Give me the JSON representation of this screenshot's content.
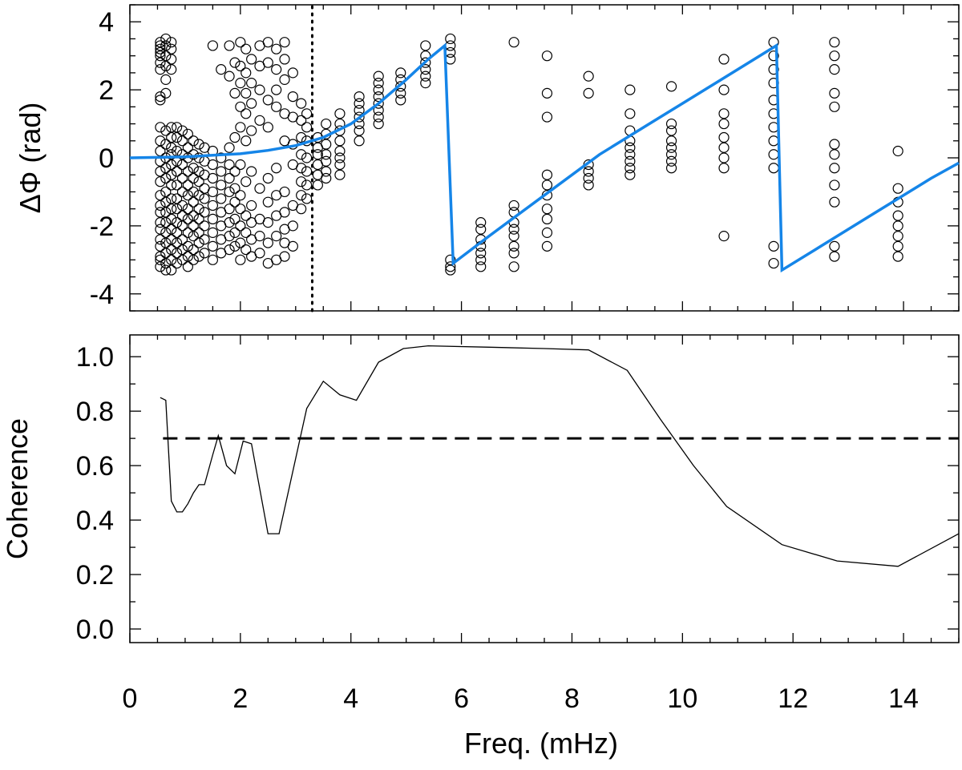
{
  "chart_data": [
    {
      "panel": "top",
      "type": "scatter",
      "xlabel": "Freq. (mHz)",
      "ylabel": "ΔΦ (rad)",
      "xlim": [
        0,
        15
      ],
      "ylim": [
        -4.5,
        4.5
      ],
      "yticks": [
        -4,
        -2,
        0,
        2,
        4
      ],
      "xticks": [
        0,
        2,
        4,
        6,
        8,
        10,
        12,
        14
      ],
      "grid": false,
      "marker": "open-circle",
      "marker_color": "#000000",
      "vline_x": 3.3,
      "vline_style": "dotted",
      "points": [
        {
          "x": 0.55,
          "y": [
            3.4,
            3.3,
            3.2,
            3.1,
            3.0,
            2.8,
            2.6,
            1.8,
            1.7,
            0.9,
            0.5,
            0.2,
            -0.1,
            -0.4,
            -0.7,
            -1.1,
            -1.4,
            -1.6,
            -1.9,
            -2.1,
            -2.4,
            -2.6,
            -2.9,
            -3.0,
            -3.2
          ]
        },
        {
          "x": 0.65,
          "y": [
            3.5,
            3.3,
            3.0,
            2.7,
            2.3,
            1.9,
            0.8,
            0.4,
            0.0,
            -0.3,
            -0.6,
            -1.0,
            -1.3,
            -1.6,
            -1.9,
            -2.2,
            -2.5,
            -2.8,
            -3.1,
            -3.3
          ]
        },
        {
          "x": 0.75,
          "y": [
            3.4,
            3.2,
            2.9,
            2.6,
            0.9,
            0.6,
            0.3,
            0.1,
            -0.2,
            -0.5,
            -0.8,
            -1.2,
            -1.5,
            -1.8,
            -2.1,
            -2.4,
            -2.7,
            -3.0,
            -3.3
          ]
        },
        {
          "x": 0.85,
          "y": [
            0.9,
            0.6,
            0.2,
            -0.1,
            -0.4,
            -0.8,
            -1.2,
            -1.5,
            -1.9,
            -2.2,
            -2.5,
            -2.8,
            -3.1
          ]
        },
        {
          "x": 0.95,
          "y": [
            0.8,
            0.5,
            0.1,
            -0.2,
            -0.6,
            -1.0,
            -1.4,
            -1.7,
            -2.0,
            -2.4,
            -2.7,
            -3.0
          ]
        },
        {
          "x": 1.05,
          "y": [
            0.7,
            0.3,
            0.0,
            -0.4,
            -0.8,
            -1.1,
            -1.5,
            -1.8,
            -2.2,
            -2.6,
            -2.9,
            -3.2
          ]
        },
        {
          "x": 1.15,
          "y": [
            0.5,
            0.1,
            -0.3,
            -0.6,
            -1.0,
            -1.3,
            -1.7,
            -2.0,
            -2.3,
            -2.7,
            -3.0
          ]
        },
        {
          "x": 1.25,
          "y": [
            0.4,
            0.0,
            -0.4,
            -0.7,
            -1.1,
            -1.5,
            -1.8,
            -2.2,
            -2.5,
            -2.9
          ]
        },
        {
          "x": 1.35,
          "y": [
            0.3,
            -0.1,
            -0.5,
            -0.9,
            -1.2,
            -1.6,
            -2.0,
            -2.4,
            -2.8
          ]
        },
        {
          "x": 1.5,
          "y": [
            3.3,
            0.2,
            -0.2,
            -0.6,
            -1.0,
            -1.4,
            -1.8,
            -2.2,
            -2.6,
            -3.0
          ]
        },
        {
          "x": 1.65,
          "y": [
            2.6,
            0.0,
            -0.4,
            -0.8,
            -1.2,
            -1.6,
            -2.0,
            -2.4,
            -2.8
          ]
        },
        {
          "x": 1.8,
          "y": [
            3.3,
            2.4,
            0.3,
            -0.2,
            -0.6,
            -1.0,
            -1.5,
            -1.9,
            -2.3,
            -2.7
          ]
        },
        {
          "x": 1.9,
          "y": [
            2.8,
            1.9,
            0.6,
            -0.4,
            -0.9,
            -1.3,
            -1.8,
            -2.2,
            -2.6
          ]
        },
        {
          "x": 2.0,
          "y": [
            3.4,
            2.7,
            2.2,
            1.5,
            0.9,
            -0.2,
            -1.1,
            -1.5,
            -2.0,
            -2.5,
            -3.0
          ]
        },
        {
          "x": 2.1,
          "y": [
            3.2,
            2.5,
            1.9,
            1.3,
            0.5,
            -0.7,
            -1.7,
            -2.2,
            -2.7
          ]
        },
        {
          "x": 2.2,
          "y": [
            2.9,
            2.2,
            1.6,
            0.8,
            -0.4,
            -1.4,
            -1.9,
            -2.4,
            -2.9
          ]
        },
        {
          "x": 2.35,
          "y": [
            3.3,
            2.7,
            2.0,
            1.1,
            -0.9,
            -1.8,
            -2.3,
            -2.8
          ]
        },
        {
          "x": 2.5,
          "y": [
            3.4,
            2.8,
            1.7,
            0.9,
            -0.6,
            -1.3,
            -1.9,
            -2.5,
            -3.1
          ]
        },
        {
          "x": 2.65,
          "y": [
            3.2,
            2.6,
            2.0,
            1.5,
            -0.3,
            -1.1,
            -1.7,
            -2.3,
            -3.0
          ]
        },
        {
          "x": 2.8,
          "y": [
            3.4,
            2.9,
            2.3,
            1.3,
            0.5,
            -1.0,
            -1.6,
            -2.1,
            -2.5,
            -2.9
          ]
        },
        {
          "x": 2.95,
          "y": [
            2.5,
            1.8,
            1.2,
            0.4,
            -0.2,
            -1.4,
            -2.0,
            -2.6
          ]
        },
        {
          "x": 3.1,
          "y": [
            1.6,
            1.1,
            0.6,
            0.1,
            -0.3,
            -0.7,
            -1.1,
            -1.5
          ]
        },
        {
          "x": 3.2,
          "y": [
            1.3,
            0.9,
            0.5,
            0.0,
            -0.4,
            -0.8,
            -1.2
          ]
        },
        {
          "x": 3.4,
          "y": [
            0.6,
            0.3,
            0.1,
            -0.2,
            -0.5,
            -0.8
          ]
        },
        {
          "x": 3.55,
          "y": [
            1.0,
            0.7,
            0.4,
            0.1,
            -0.1,
            -0.4,
            -0.6
          ]
        },
        {
          "x": 3.8,
          "y": [
            1.3,
            1.0,
            0.8,
            0.5,
            0.2,
            0.0,
            -0.2,
            -0.5
          ]
        },
        {
          "x": 4.15,
          "y": [
            1.8,
            1.6,
            1.4,
            1.2,
            1.0,
            0.8,
            0.5
          ]
        },
        {
          "x": 4.5,
          "y": [
            2.4,
            2.2,
            2.0,
            1.8,
            1.6,
            1.4,
            1.2,
            1.0
          ]
        },
        {
          "x": 4.9,
          "y": [
            2.5,
            2.3,
            2.1,
            1.9,
            1.7
          ]
        },
        {
          "x": 5.35,
          "y": [
            3.3,
            3.0,
            2.8,
            2.6,
            2.4,
            2.2
          ]
        },
        {
          "x": 5.8,
          "y": [
            3.5,
            3.3,
            3.1,
            2.9,
            -3.0,
            -3.2,
            -3.3
          ]
        },
        {
          "x": 6.35,
          "y": [
            -1.9,
            -2.1,
            -2.4,
            -2.6,
            -2.8,
            -3.0,
            -3.2
          ]
        },
        {
          "x": 6.95,
          "y": [
            3.4,
            -1.4,
            -1.6,
            -1.9,
            -2.1,
            -2.3,
            -2.6,
            -2.8,
            -3.2
          ]
        },
        {
          "x": 7.55,
          "y": [
            3.0,
            1.9,
            1.2,
            -0.5,
            -0.8,
            -1.1,
            -1.5,
            -1.8,
            -2.2,
            -2.6
          ]
        },
        {
          "x": 8.3,
          "y": [
            2.4,
            1.9,
            -0.2,
            -0.4,
            -0.6,
            -0.8
          ]
        },
        {
          "x": 9.05,
          "y": [
            2.0,
            1.3,
            0.8,
            0.5,
            0.3,
            0.1,
            -0.1,
            -0.3,
            -0.5
          ]
        },
        {
          "x": 9.8,
          "y": [
            2.1,
            1.0,
            0.8,
            0.5,
            0.3,
            0.1,
            -0.1,
            -0.3
          ]
        },
        {
          "x": 10.75,
          "y": [
            2.9,
            2.0,
            1.3,
            1.0,
            0.6,
            0.3,
            0.0,
            -0.3,
            -2.3
          ]
        },
        {
          "x": 11.65,
          "y": [
            3.4,
            3.0,
            2.6,
            2.2,
            1.7,
            1.3,
            0.9,
            0.5,
            0.1,
            -0.3,
            -2.6,
            -3.1
          ]
        },
        {
          "x": 12.75,
          "y": [
            3.4,
            3.0,
            2.6,
            1.9,
            1.5,
            0.4,
            0.1,
            -0.3,
            -0.8,
            -1.3,
            -2.6,
            -2.9
          ]
        },
        {
          "x": 13.9,
          "y": [
            0.2,
            -0.9,
            -1.3,
            -1.7,
            -2.0,
            -2.3,
            -2.6,
            -2.9
          ]
        }
      ],
      "fit_line": {
        "color": "#1585e8",
        "points": [
          [
            0,
            0.0
          ],
          [
            1.0,
            0.03
          ],
          [
            2.0,
            0.12
          ],
          [
            2.5,
            0.22
          ],
          [
            3.0,
            0.36
          ],
          [
            3.5,
            0.6
          ],
          [
            4.0,
            1.0
          ],
          [
            4.5,
            1.6
          ],
          [
            5.0,
            2.3
          ],
          [
            5.4,
            2.9
          ],
          [
            5.7,
            3.3
          ],
          [
            5.85,
            -3.1
          ],
          [
            6.5,
            -2.3
          ],
          [
            7.5,
            -1.1
          ],
          [
            8.5,
            0.1
          ],
          [
            9.5,
            1.1
          ],
          [
            10.5,
            2.1
          ],
          [
            11.7,
            3.3
          ],
          [
            11.8,
            -3.3
          ],
          [
            12.5,
            -2.6
          ],
          [
            13.5,
            -1.6
          ],
          [
            14.5,
            -0.6
          ],
          [
            15.0,
            -0.15
          ]
        ]
      }
    },
    {
      "panel": "bottom",
      "type": "line",
      "xlabel": "Freq. (mHz)",
      "ylabel": "Coherence",
      "xlim": [
        0,
        15
      ],
      "ylim": [
        -0.05,
        1.08
      ],
      "yticks": [
        "0.0",
        "0.2",
        "0.4",
        "0.6",
        "0.8",
        "1.0"
      ],
      "xticks": [
        "0",
        "2",
        "4",
        "6",
        "8",
        "10",
        "12",
        "14"
      ],
      "grid": false,
      "line_color": "#000000",
      "threshold": 0.7,
      "threshold_style": "dashed",
      "points": [
        [
          0.55,
          0.85
        ],
        [
          0.65,
          0.84
        ],
        [
          0.75,
          0.47
        ],
        [
          0.85,
          0.43
        ],
        [
          0.95,
          0.43
        ],
        [
          1.05,
          0.46
        ],
        [
          1.15,
          0.5
        ],
        [
          1.25,
          0.53
        ],
        [
          1.35,
          0.53
        ],
        [
          1.5,
          0.64
        ],
        [
          1.6,
          0.71
        ],
        [
          1.75,
          0.6
        ],
        [
          1.9,
          0.57
        ],
        [
          2.05,
          0.69
        ],
        [
          2.2,
          0.68
        ],
        [
          2.5,
          0.35
        ],
        [
          2.7,
          0.35
        ],
        [
          3.2,
          0.81
        ],
        [
          3.5,
          0.91
        ],
        [
          3.8,
          0.86
        ],
        [
          4.1,
          0.84
        ],
        [
          4.5,
          0.98
        ],
        [
          4.95,
          1.03
        ],
        [
          5.4,
          1.04
        ],
        [
          6.5,
          1.035
        ],
        [
          7.5,
          1.03
        ],
        [
          8.3,
          1.025
        ],
        [
          9.0,
          0.95
        ],
        [
          9.6,
          0.77
        ],
        [
          10.2,
          0.6
        ],
        [
          10.8,
          0.45
        ],
        [
          11.8,
          0.31
        ],
        [
          12.8,
          0.25
        ],
        [
          13.9,
          0.23
        ],
        [
          15.0,
          0.35
        ]
      ]
    }
  ]
}
